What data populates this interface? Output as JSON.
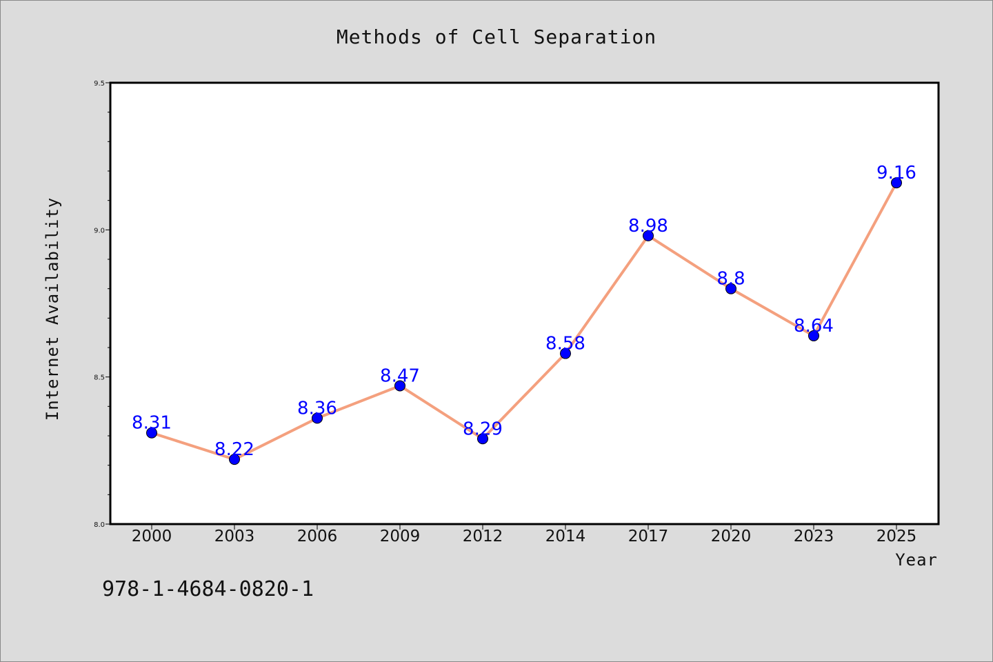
{
  "footer_text": "978-1-4684-0820-1",
  "colors": {
    "background": "#dcdcdc",
    "plot_background": "#ffffff",
    "line": "#f4a07e",
    "marker": "#0000ff",
    "data_label": "#0000ff"
  },
  "chart_data": {
    "type": "line",
    "title": "Methods of Cell Separation",
    "xlabel": "Year",
    "ylabel": "Internet Availability",
    "categories": [
      "2000",
      "2003",
      "2006",
      "2009",
      "2012",
      "2014",
      "2017",
      "2020",
      "2023",
      "2025"
    ],
    "series": [
      {
        "values": [
          8.31,
          8.22,
          8.36,
          8.47,
          8.29,
          8.58,
          8.98,
          8.8,
          8.64,
          9.16
        ],
        "data_labels": [
          "8.31",
          "8.22",
          "8.36",
          "8.47",
          "8.29",
          "8.58",
          "8.98",
          "8.8",
          "8.64",
          "9.16"
        ]
      }
    ],
    "ylim": [
      8.0,
      9.5
    ],
    "yticks": [
      "8.0",
      "8.5",
      "9.0",
      "9.5"
    ],
    "grid": false,
    "legend": "none"
  }
}
